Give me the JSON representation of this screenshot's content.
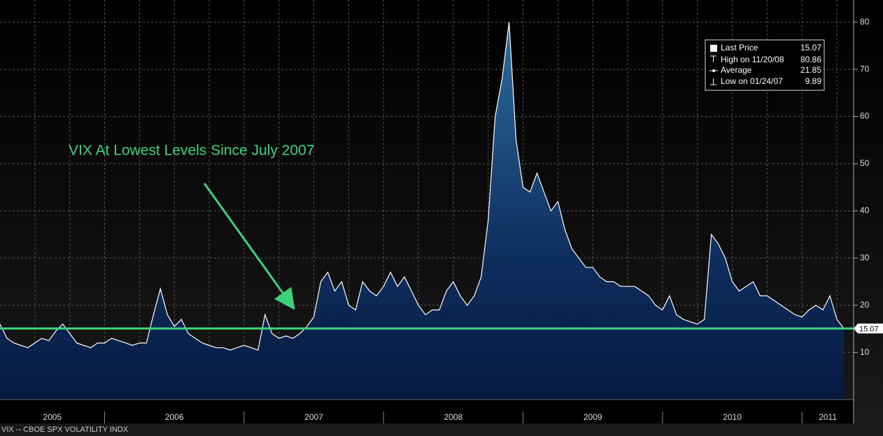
{
  "chart_data": {
    "type": "area",
    "annotation": "VIX At Lowest Levels Since July 2007",
    "footer": "VIX -- CBOE SPX VOLATILITY INDX",
    "line_color": "#ffffff",
    "level_color": "#3fd17a",
    "grid": true,
    "ylim": [
      0,
      84.7
    ],
    "yticks": [
      10,
      20,
      30,
      40,
      50,
      60,
      70,
      80
    ],
    "xlim": [
      2005.25,
      2011.37
    ],
    "xticks": [
      2005.5,
      2005.75,
      2006,
      2006.25,
      2006.5,
      2006.75,
      2007,
      2007.25,
      2007.5,
      2007.75,
      2008,
      2008.25,
      2008.5,
      2008.75,
      2009,
      2009.25,
      2009.5,
      2009.75,
      2010,
      2010.25,
      2010.5,
      2010.75,
      2011,
      2011.25
    ],
    "year_labels": [
      "2005",
      "2006",
      "2007",
      "2008",
      "2009",
      "2010",
      "2011"
    ],
    "stats": [
      {
        "label": "Last Price",
        "value": 15.07
      },
      {
        "label": "High on 11/20/08",
        "value": 80.86
      },
      {
        "label": "Average",
        "value": 21.85
      },
      {
        "label": "Low on 01/24/07",
        "value": 9.89
      }
    ],
    "series": [
      {
        "name": "VIX",
        "x": [
          2005.25,
          2005.3,
          2005.35,
          2005.4,
          2005.45,
          2005.5,
          2005.55,
          2005.6,
          2005.65,
          2005.7,
          2005.75,
          2005.8,
          2005.85,
          2005.9,
          2005.95,
          2006,
          2006.05,
          2006.1,
          2006.15,
          2006.2,
          2006.25,
          2006.3,
          2006.35,
          2006.4,
          2006.45,
          2006.5,
          2006.55,
          2006.6,
          2006.65,
          2006.7,
          2006.75,
          2006.8,
          2006.85,
          2006.9,
          2006.95,
          2007,
          2007.05,
          2007.1,
          2007.15,
          2007.2,
          2007.25,
          2007.3,
          2007.35,
          2007.4,
          2007.45,
          2007.5,
          2007.55,
          2007.6,
          2007.65,
          2007.7,
          2007.75,
          2007.8,
          2007.85,
          2007.9,
          2007.95,
          2008,
          2008.05,
          2008.1,
          2008.15,
          2008.2,
          2008.25,
          2008.3,
          2008.35,
          2008.4,
          2008.45,
          2008.5,
          2008.55,
          2008.6,
          2008.65,
          2008.7,
          2008.75,
          2008.8,
          2008.85,
          2008.9,
          2008.95,
          2009,
          2009.05,
          2009.1,
          2009.15,
          2009.2,
          2009.25,
          2009.3,
          2009.35,
          2009.4,
          2009.45,
          2009.5,
          2009.55,
          2009.6,
          2009.65,
          2009.7,
          2009.75,
          2009.8,
          2009.85,
          2009.9,
          2009.95,
          2010,
          2010.05,
          2010.1,
          2010.15,
          2010.2,
          2010.25,
          2010.3,
          2010.35,
          2010.4,
          2010.45,
          2010.5,
          2010.55,
          2010.6,
          2010.65,
          2010.7,
          2010.75,
          2010.8,
          2010.85,
          2010.9,
          2010.95,
          2011,
          2011.05,
          2011.1,
          2011.15,
          2011.2,
          2011.25,
          2011.3
        ],
        "values": [
          16,
          13,
          12,
          11.5,
          11,
          12,
          13,
          12.5,
          14.5,
          16,
          14,
          12,
          11.5,
          11,
          12,
          12,
          13,
          12.5,
          12,
          11.5,
          12,
          12,
          18,
          23.5,
          18,
          15.5,
          17,
          14,
          13,
          12,
          11.5,
          11,
          11,
          10.5,
          11,
          11.5,
          11,
          10.5,
          18,
          14,
          13,
          13.5,
          13,
          14,
          15.5,
          17.5,
          25,
          27,
          23,
          25,
          20,
          19,
          25,
          23,
          22,
          24,
          27,
          24,
          26,
          23,
          20,
          18,
          19,
          19,
          23,
          25,
          22,
          20,
          22,
          26,
          38,
          60,
          68,
          80,
          55,
          45,
          44,
          48,
          44,
          40,
          42,
          36,
          32,
          30,
          28,
          28,
          26,
          25,
          25,
          24,
          24,
          24,
          23,
          22,
          20,
          19,
          22,
          18,
          17,
          16.5,
          16,
          17,
          35,
          33,
          30,
          25,
          23,
          24,
          25,
          22,
          22,
          21,
          20,
          19,
          18,
          17.5,
          19,
          20,
          19,
          22,
          17,
          15.07
        ]
      }
    ]
  }
}
